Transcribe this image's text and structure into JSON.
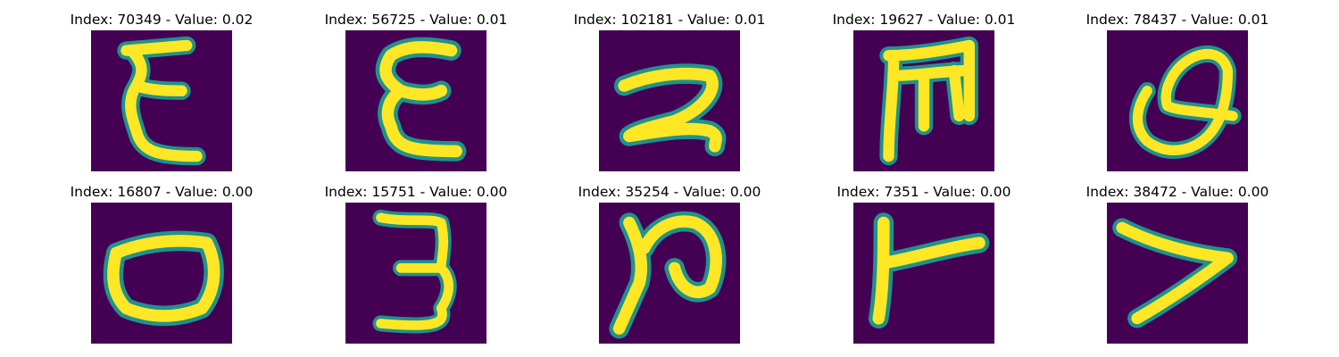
{
  "colors": {
    "background": "#440154",
    "stroke_edge": "#21918c",
    "stroke_core": "#fde725",
    "text": "#000000"
  },
  "panels": [
    {
      "title": "Index: 70349 - Value: 0.02",
      "glyph": "E-like"
    },
    {
      "title": "Index: 56725 - Value: 0.01",
      "glyph": "E-like"
    },
    {
      "title": "Index: 102181 - Value: 0.01",
      "glyph": "2-like"
    },
    {
      "title": "Index: 19627 - Value: 0.01",
      "glyph": "m-like"
    },
    {
      "title": "Index: 78437 - Value: 0.01",
      "glyph": "Q-like"
    },
    {
      "title": "Index: 16807 - Value: 0.00",
      "glyph": "0-like"
    },
    {
      "title": "Index: 15751 - Value: 0.00",
      "glyph": "3-like"
    },
    {
      "title": "Index: 35254 - Value: 0.00",
      "glyph": "N-like"
    },
    {
      "title": "Index: 7351 - Value: 0.00",
      "glyph": "T-like"
    },
    {
      "title": "Index: 38472 - Value: 0.00",
      "glyph": "7-like"
    }
  ]
}
